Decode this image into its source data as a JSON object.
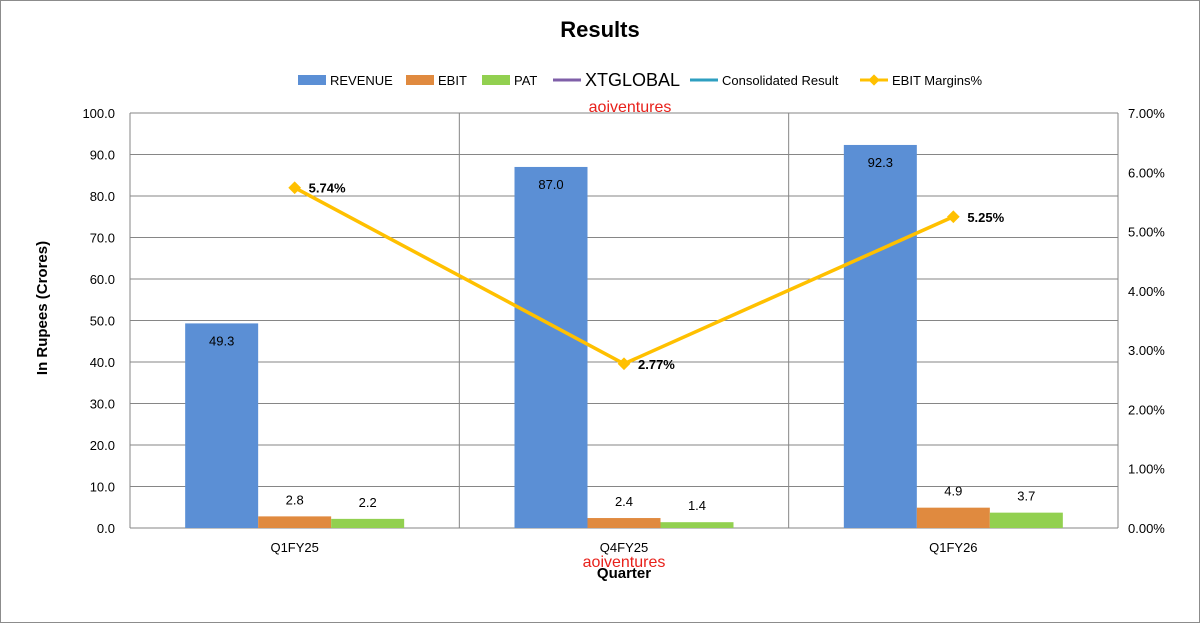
{
  "chart_data": {
    "type": "bar",
    "title": "Results",
    "categories": [
      "Q1FY25",
      "Q4FY25",
      "Q1FY26"
    ],
    "xlabel": "Quarter",
    "ylabel": "In Rupees (Crores)",
    "ylim": [
      0,
      100
    ],
    "y_ticks": [
      "0.0",
      "10.0",
      "20.0",
      "30.0",
      "40.0",
      "50.0",
      "60.0",
      "70.0",
      "80.0",
      "90.0",
      "100.0"
    ],
    "y2lim": [
      0,
      7
    ],
    "y2_ticks": [
      "0.00%",
      "1.00%",
      "2.00%",
      "3.00%",
      "4.00%",
      "5.00%",
      "6.00%",
      "7.00%"
    ],
    "grid": true,
    "legend_position": "top",
    "series": [
      {
        "name": "REVENUE",
        "kind": "bar",
        "color": "#5b8fd5",
        "values": [
          49.3,
          87.0,
          92.3
        ],
        "labels": [
          "49.3",
          "87.0",
          "92.3"
        ]
      },
      {
        "name": "EBIT",
        "kind": "bar",
        "color": "#e08a3f",
        "values": [
          2.8,
          2.4,
          4.9
        ],
        "labels": [
          "2.8",
          "2.4",
          "4.9"
        ]
      },
      {
        "name": "PAT",
        "kind": "bar",
        "color": "#92d050",
        "values": [
          2.2,
          1.4,
          3.7
        ],
        "labels": [
          "2.2",
          "1.4",
          "3.7"
        ]
      },
      {
        "name": "XTGLOBAL",
        "kind": "legend-only",
        "color": "#7f5fa8"
      },
      {
        "name": "Consolidated Result",
        "kind": "legend-only",
        "color": "#2e9fc0"
      },
      {
        "name": "EBIT Margins%",
        "kind": "line",
        "axis": "right",
        "color": "#ffc000",
        "values": [
          5.74,
          2.77,
          5.25
        ],
        "labels": [
          "5.74%",
          "2.77%",
          "5.25%"
        ]
      }
    ]
  },
  "watermark": {
    "top": "aoiventures",
    "bottom": "aoiventures"
  }
}
